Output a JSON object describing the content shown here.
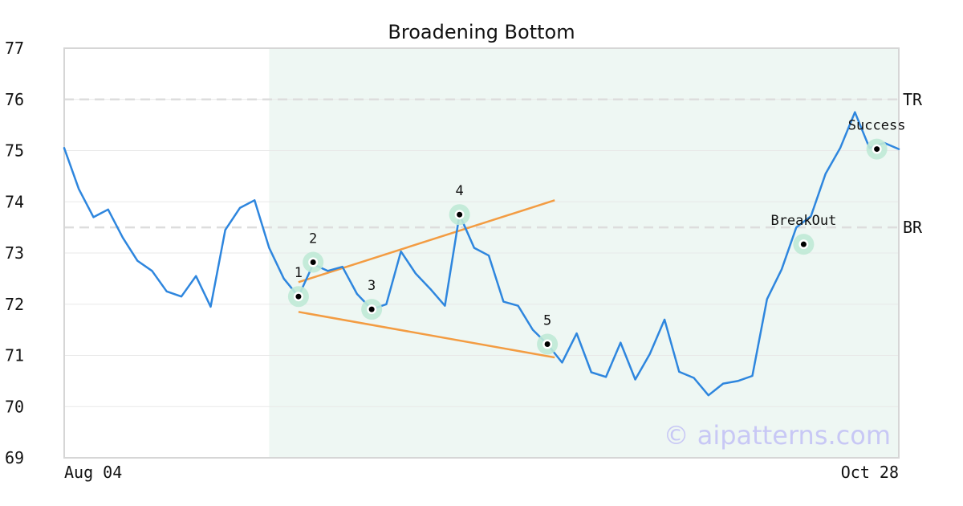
{
  "chart_data": {
    "type": "line",
    "title": "Broadening Bottom",
    "xlabel": "",
    "ylabel": "",
    "ylim": [
      69,
      77
    ],
    "y_ticks": [
      "69",
      "70",
      "71",
      "72",
      "73",
      "74",
      "75",
      "76",
      "77"
    ],
    "x_tick_labels": [
      "Aug 04",
      "Oct 28"
    ],
    "grid": "horizontal",
    "colors": {
      "line": "#2e86de",
      "trendline": "#f39c42",
      "highlight": "#eef7f3",
      "marker_halo": "#bfe9d6",
      "levels": "#dddddd",
      "watermark": "#c8c8f5"
    },
    "series": [
      {
        "values": [
          75.05,
          74.25,
          73.7,
          73.85,
          73.3,
          72.85,
          72.65,
          72.25,
          72.15,
          72.55,
          71.95,
          73.45,
          73.88,
          74.03,
          73.1,
          72.5,
          72.15,
          72.78,
          72.65,
          72.73,
          72.2,
          71.9,
          72.0,
          73.03,
          72.6,
          72.3,
          71.97,
          73.75,
          73.1,
          72.95,
          72.05,
          71.97,
          71.5,
          71.22,
          70.86,
          71.43,
          70.67,
          70.58,
          71.25,
          70.53,
          71.03,
          71.7,
          70.68,
          70.56,
          70.22,
          70.45,
          70.5,
          70.6,
          72.1,
          72.68,
          73.5,
          73.72,
          74.55,
          75.05,
          75.75,
          75.05,
          75.15,
          75.03
        ]
      }
    ],
    "highlight_range": {
      "start_index": 14,
      "end_index": 57
    },
    "trendlines": [
      {
        "from": {
          "index": 16,
          "value": 72.43
        },
        "to": {
          "index": 33.5,
          "value": 74.03
        }
      },
      {
        "from": {
          "index": 16,
          "value": 71.85
        },
        "to": {
          "index": 33.5,
          "value": 70.96
        }
      }
    ],
    "levels": [
      {
        "label": "TR",
        "value": 76.0
      },
      {
        "label": "BR",
        "value": 73.5
      }
    ],
    "annotations": [
      {
        "label": "1",
        "index": 16,
        "value": 72.15
      },
      {
        "label": "2",
        "index": 17,
        "value": 72.82
      },
      {
        "label": "3",
        "index": 21,
        "value": 71.9
      },
      {
        "label": "4",
        "index": 27,
        "value": 73.75
      },
      {
        "label": "5",
        "index": 33,
        "value": 71.22
      },
      {
        "label": "BreakOut",
        "index": 50.5,
        "value": 73.17
      },
      {
        "label": "Success",
        "index": 55.5,
        "value": 75.03
      }
    ],
    "watermark": "© aipatterns.com"
  }
}
